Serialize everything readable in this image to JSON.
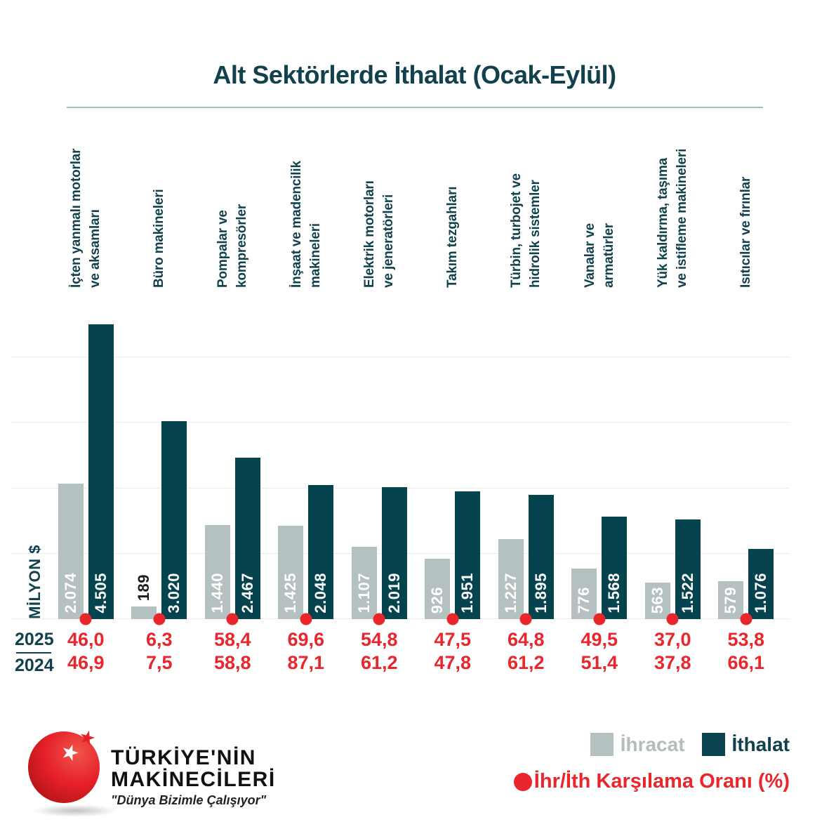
{
  "title": "Alt Sektörlerde İthalat (Ocak-Eylül)",
  "colors": {
    "teal": "#05434e",
    "gray": "#b5c0c1",
    "red": "#e9262b",
    "grid": "#ececec"
  },
  "chart_data": {
    "type": "bar",
    "title": "Alt Sektörlerde İthalat (Ocak-Eylül)",
    "ylabel": "MİLYON $",
    "ylim": [
      0,
      4505
    ],
    "gridline_values": [
      0,
      1000,
      2000,
      3000,
      4000
    ],
    "legend_position": "bottom-right",
    "categories": [
      "İçten yanmalı motorlar\nve aksamları",
      "Büro makineleri",
      "Pompalar ve\nkompresörler",
      "İnşaat ve madencilik\nmakineleri",
      "Elektrik motorları\nve jeneratörleri",
      "Takım tezgahları",
      "Türbin, turbojet ve\nhidrolik sistemler",
      "Vanalar ve\narmatürler",
      "Yük kaldırma, taşıma\nve istifleme makineleri",
      "Isıtıcılar ve fırınlar"
    ],
    "series": [
      {
        "name": "İhracat",
        "color": "#b5c0c1",
        "values": [
          2074,
          189,
          1440,
          1425,
          1107,
          926,
          1227,
          776,
          563,
          579
        ],
        "labels": [
          "2.074",
          "189",
          "1.440",
          "1.425",
          "1.107",
          "926",
          "1.227",
          "776",
          "563",
          "579"
        ]
      },
      {
        "name": "İthalat",
        "color": "#05434e",
        "values": [
          4505,
          3020,
          2467,
          2048,
          2019,
          1951,
          1895,
          1568,
          1522,
          1076
        ],
        "labels": [
          "4.505",
          "3.020",
          "2.467",
          "2.048",
          "2.019",
          "1.951",
          "1.895",
          "1.568",
          "1.522",
          "1.076"
        ]
      }
    ],
    "ratio": {
      "name": "İhr/İth Karşılama Oranı (%)",
      "rows": [
        {
          "year": "2025",
          "values": [
            "46,0",
            "6,3",
            "58,4",
            "69,6",
            "54,8",
            "47,5",
            "64,8",
            "49,5",
            "37,0",
            "53,8"
          ]
        },
        {
          "year": "2024",
          "values": [
            "46,9",
            "7,5",
            "58,8",
            "87,1",
            "61,2",
            "47,8",
            "61,2",
            "51,4",
            "37,8",
            "66,1"
          ]
        }
      ]
    }
  },
  "legend": {
    "series": [
      {
        "label": "İhracat",
        "swatch": "#b5c0c1"
      },
      {
        "label": "İthalat",
        "swatch": "#0b4450"
      }
    ],
    "ratio_label": "İhr/İth Karşılama Oranı (%)"
  },
  "logo": {
    "line1": "TÜRKİYE'NİN",
    "line2": "MAKİNECİLERİ",
    "slogan": "\"Dünya Bizimle Çalışıyor\""
  }
}
